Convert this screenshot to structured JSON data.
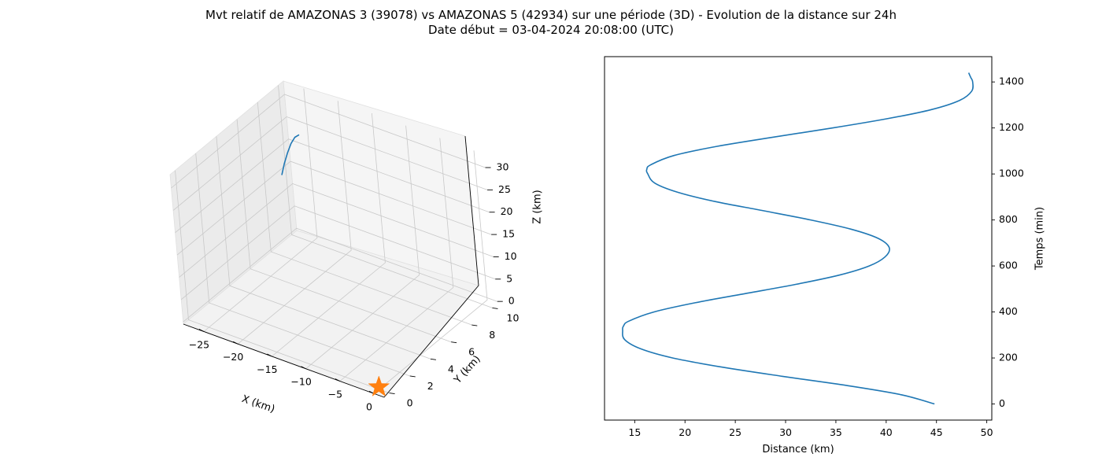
{
  "figure": {
    "title_line1": "Mvt relatif de AMAZONAS 3 (39078) vs AMAZONAS 5 (42934) sur une période (3D) - Evolution de la distance sur 24h",
    "title_line2": "Date début = 03-04-2024 20:08:00 (UTC)"
  },
  "colors": {
    "series": "#1f77b4",
    "marker": "#ff7f0e"
  },
  "chart_data": [
    {
      "type": "line",
      "projection": "3d",
      "xlabel": "X (km)",
      "ylabel": "Y (km)",
      "zlabel": "Z (km)",
      "xlim": [
        -28,
        1.5
      ],
      "ylim": [
        -0.5,
        10.5
      ],
      "zlim": [
        -0.5,
        33
      ],
      "xticks": [
        -25,
        -20,
        -15,
        -10,
        -5,
        0
      ],
      "yticks": [
        0,
        2,
        4,
        6,
        8,
        10
      ],
      "zticks": [
        0,
        5,
        10,
        15,
        20,
        25,
        30
      ],
      "grid": true,
      "series": [
        {
          "points": [
            [
              -27.5,
              9.3,
              14.5
            ],
            [
              -27.3,
              9.5,
              16.8
            ],
            [
              -27.0,
              9.7,
              19.0
            ],
            [
              -26.6,
              9.85,
              21.0
            ],
            [
              -26.1,
              9.95,
              22.5
            ],
            [
              -25.5,
              10.0,
              23.3
            ]
          ]
        }
      ],
      "marker": {
        "symbol": "star",
        "point": [
          0,
          0,
          0
        ]
      }
    },
    {
      "type": "line",
      "xlabel": "Distance (km)",
      "ylabel": "Temps (min)",
      "xlim": [
        12,
        50.5
      ],
      "ylim": [
        -70,
        1510
      ],
      "xticks": [
        15,
        20,
        25,
        30,
        35,
        40,
        45,
        50
      ],
      "yticks": [
        0,
        200,
        400,
        600,
        800,
        1000,
        1200,
        1400
      ],
      "yaxis_position": "right",
      "grid": false,
      "series": [
        {
          "y": [
            0,
            40,
            80,
            120,
            160,
            200,
            240,
            280,
            320,
            340,
            360,
            400,
            440,
            480,
            520,
            560,
            600,
            640,
            680,
            720,
            760,
            800,
            840,
            880,
            920,
            960,
            1000,
            1020,
            1040,
            1080,
            1120,
            1160,
            1200,
            1240,
            1280,
            1320,
            1360,
            1400,
            1420,
            1440
          ],
          "x": [
            44.8,
            41.5,
            36.1,
            29.7,
            23.7,
            18.8,
            15.6,
            14.0,
            13.8,
            13.9,
            14.4,
            16.9,
            21.0,
            26.0,
            31.0,
            35.3,
            38.3,
            39.9,
            40.3,
            39.2,
            36.5,
            32.5,
            27.8,
            23.0,
            19.3,
            17.0,
            16.3,
            16.2,
            16.6,
            18.9,
            23.2,
            28.8,
            34.7,
            40.1,
            44.5,
            47.3,
            48.5,
            48.6,
            48.4,
            48.2
          ]
        }
      ]
    }
  ]
}
